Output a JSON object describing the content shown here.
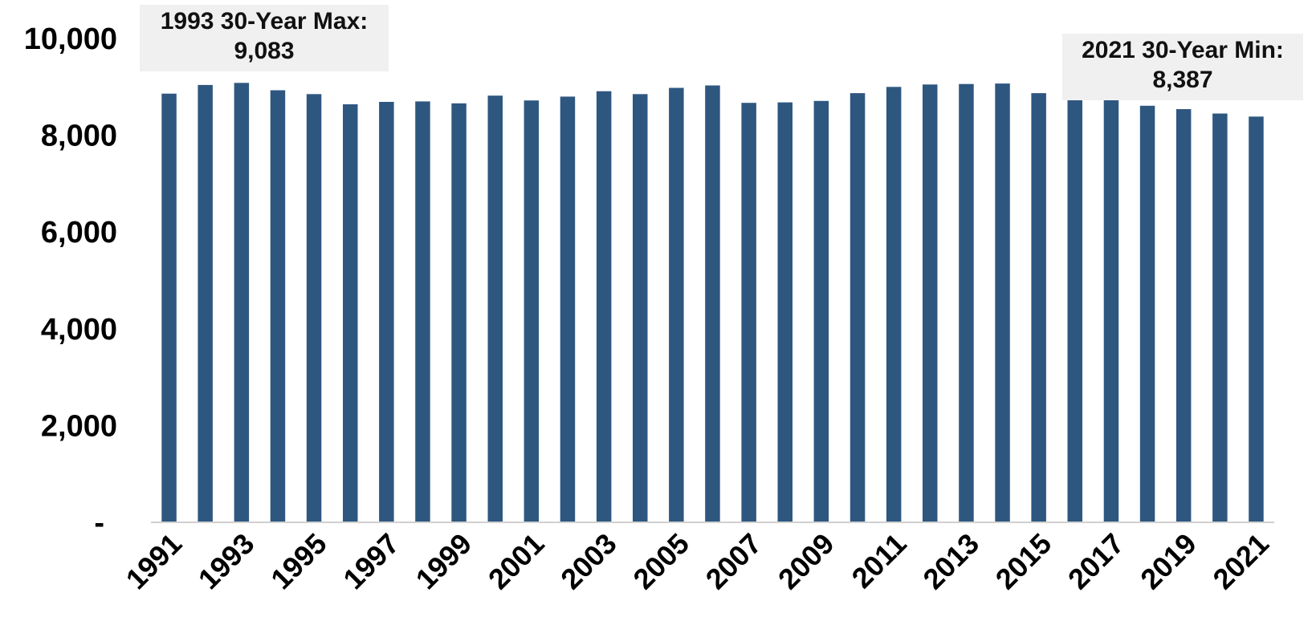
{
  "chart_data": {
    "type": "bar",
    "categories": [
      "1991",
      "1992",
      "1993",
      "1994",
      "1995",
      "1996",
      "1997",
      "1998",
      "1999",
      "2000",
      "2001",
      "2002",
      "2003",
      "2004",
      "2005",
      "2006",
      "2007",
      "2008",
      "2009",
      "2010",
      "2011",
      "2012",
      "2013",
      "2014",
      "2015",
      "2016",
      "2017",
      "2018",
      "2019",
      "2020",
      "2021"
    ],
    "values": [
      8860,
      9040,
      9083,
      8930,
      8850,
      8640,
      8690,
      8700,
      8660,
      8820,
      8720,
      8800,
      8910,
      8850,
      8980,
      9030,
      8670,
      8680,
      8710,
      8870,
      9000,
      9050,
      9060,
      9070,
      8870,
      8740,
      8730,
      8610,
      8540,
      8450,
      8387
    ],
    "x_tick_labels": [
      "1991",
      "1993",
      "1995",
      "1997",
      "1999",
      "2001",
      "2003",
      "2005",
      "2007",
      "2009",
      "2011",
      "2013",
      "2015",
      "2017",
      "2019",
      "2021"
    ],
    "y_tick_labels": [
      "-",
      "2,000",
      "4,000",
      "6,000",
      "8,000",
      "10,000"
    ],
    "ylim": [
      0,
      10000
    ],
    "title": "",
    "xlabel": "",
    "ylabel": "",
    "grid": false,
    "bar_color": "#2e5780",
    "annotations": [
      {
        "line1": "1993 30-Year Max:",
        "line2": "9,083"
      },
      {
        "line1": "2021 30-Year Min:",
        "line2": "8,387"
      }
    ]
  }
}
